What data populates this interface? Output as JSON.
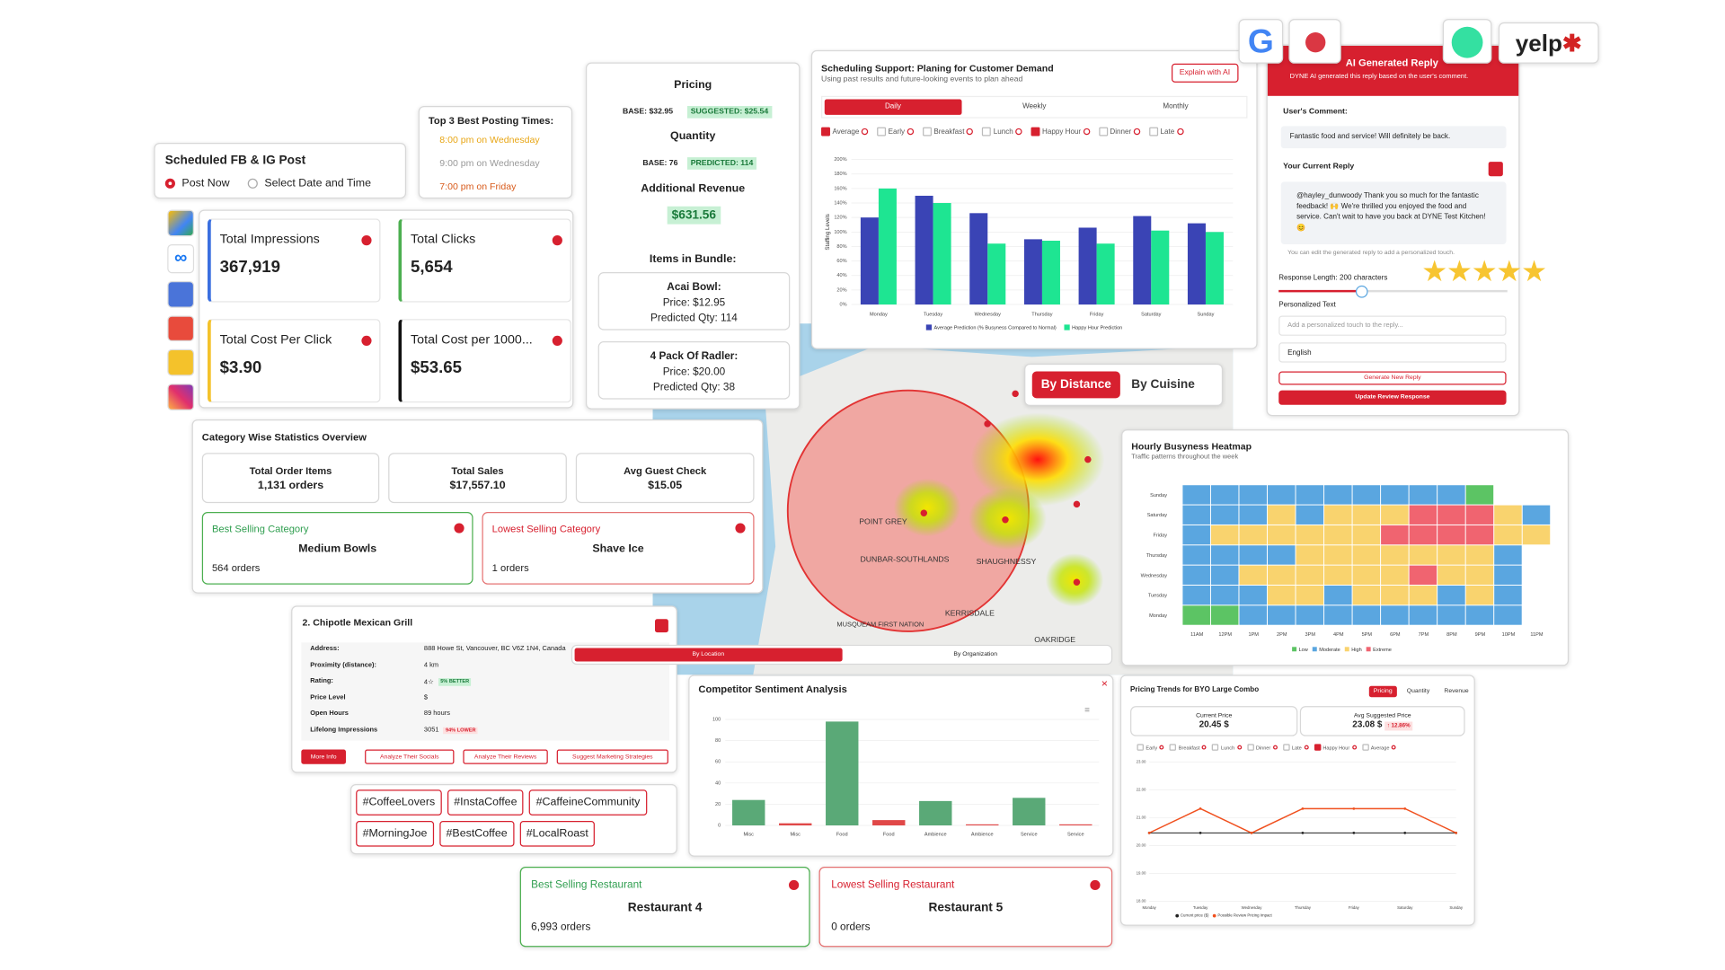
{
  "scheduled_post": {
    "title": "Scheduled FB & IG Post",
    "options": [
      "Post Now",
      "Select Date and Time"
    ]
  },
  "best_times": {
    "title": "Top 3 Best Posting Times:",
    "times": [
      "8:00 pm on Wednesday",
      "9:00 pm on Wednesday",
      "7:00 pm on Friday"
    ]
  },
  "metrics": [
    {
      "label": "Total Impressions",
      "value": "367,919"
    },
    {
      "label": "Total Clicks",
      "value": "5,654"
    },
    {
      "label": "Total Cost Per Click",
      "value": "$3.90"
    },
    {
      "label": "Total Cost per 1000...",
      "value": "$53.65"
    }
  ],
  "pricing": {
    "title": "Pricing",
    "base": "BASE: $32.95",
    "suggested": "SUGGESTED: $25.54",
    "quantity_title": "Quantity",
    "qty_base": "BASE: 76",
    "qty_predicted": "PREDICTED: 114",
    "revenue_title": "Additional Revenue",
    "revenue": "$631.56",
    "bundle_title": "Items in Bundle:",
    "items": [
      {
        "name": "Acai Bowl:",
        "price": "Price: $12.95",
        "qty": "Predicted Qty: 114"
      },
      {
        "name": "4 Pack Of Radler:",
        "price": "Price: $20.00",
        "qty": "Predicted Qty: 38"
      }
    ]
  },
  "scheduling": {
    "type": "bar",
    "title": "Scheduling Support: Planing for Customer Demand",
    "subtitle": "Using past results and future-looking events to plan ahead",
    "button": "Explain with AI",
    "tabs": [
      "Daily",
      "Weekly",
      "Monthly"
    ],
    "filters": [
      {
        "name": "Average",
        "checked": true
      },
      {
        "name": "Early",
        "checked": false
      },
      {
        "name": "Breakfast",
        "checked": false
      },
      {
        "name": "Lunch",
        "checked": false
      },
      {
        "name": "Happy Hour",
        "checked": true
      },
      {
        "name": "Dinner",
        "checked": false
      },
      {
        "name": "Late",
        "checked": false
      }
    ],
    "y_label": "Staffing Levels",
    "categories": [
      "Monday",
      "Tuesday",
      "Wednesday",
      "Thursday",
      "Friday",
      "Saturday",
      "Sunday"
    ],
    "series": [
      {
        "name": "Average Prediction (% Busyness Compared to Normal)",
        "color": "#3a44b5",
        "values": [
          120,
          150,
          126,
          90,
          106,
          122,
          112
        ]
      },
      {
        "name": "Happy Hour Prediction",
        "color": "#1ee592",
        "values": [
          160,
          140,
          84,
          88,
          84,
          102,
          100
        ]
      }
    ],
    "ylim": [
      0,
      200
    ],
    "yticks": [
      {
        "value": 0,
        "label": "0%"
      },
      {
        "value": 20,
        "label": "20%"
      },
      {
        "value": 40,
        "label": "40%"
      },
      {
        "value": 60,
        "label": "60%"
      },
      {
        "value": 80,
        "label": "80%"
      },
      {
        "value": 100,
        "label": "100%"
      },
      {
        "value": 120,
        "label": "120%"
      },
      {
        "value": 140,
        "label": "140%"
      },
      {
        "value": 160,
        "label": "160%"
      },
      {
        "value": 180,
        "label": "180%"
      },
      {
        "value": 200,
        "label": "200%"
      }
    ],
    "grid": true
  },
  "map": {
    "tabs": [
      "By Distance",
      "By Cuisine"
    ],
    "labels": [
      "DUNBAR-SOUTHLANDS",
      "SHAUGHNESSY",
      "KERRISDALE",
      "MUSQUEAM FIRST NATION",
      "OAKRIDGE",
      "POINT GREY"
    ]
  },
  "logos": {
    "yelp": "yelp"
  },
  "ai_reply": {
    "title": "AI Generated Reply",
    "subtitle": "DYNE AI generated this reply based on the user's comment.",
    "comment_label": "User's Comment:",
    "comment": "Fantastic food and service! Will definitely be back.",
    "reply_label": "Your Current Reply",
    "reply": "@hayley_dunwoody Thank you so much for the fantastic feedback! 🙌 We're thrilled you enjoyed the food and service. Can't wait to have you back at DYNE Test Kitchen! 😊",
    "hint": "You can edit the generated reply to add a personalized touch.",
    "length": "Response Length: 200 characters",
    "personal_label": "Personalized Text",
    "placeholder": "Add a personalized touch to the reply...",
    "language": "English",
    "generate": "Generate New Reply",
    "update": "Update Review Response"
  },
  "heatmap": {
    "type": "heatmap",
    "title": "Hourly Busyness Heatmap",
    "subtitle": "Traffic patterns throughout the week",
    "rows": [
      "Sunday",
      "Saturday",
      "Friday",
      "Thursday",
      "Wednesday",
      "Tuesday",
      "Monday"
    ],
    "columns": [
      "11AM",
      "12PM",
      "1PM",
      "2PM",
      "3PM",
      "4PM",
      "5PM",
      "6PM",
      "7PM",
      "8PM",
      "9PM",
      "10PM",
      "11PM"
    ],
    "values": [
      [
        1,
        1,
        1,
        1,
        1,
        1,
        1,
        1,
        1,
        1,
        0,
        null,
        null
      ],
      [
        1,
        1,
        1,
        2,
        1,
        2,
        2,
        2,
        3,
        3,
        3,
        2,
        1
      ],
      [
        1,
        2,
        2,
        2,
        2,
        2,
        2,
        3,
        3,
        3,
        3,
        2,
        2
      ],
      [
        1,
        1,
        1,
        1,
        2,
        2,
        2,
        2,
        2,
        2,
        2,
        1,
        null
      ],
      [
        1,
        1,
        2,
        2,
        2,
        2,
        2,
        2,
        3,
        2,
        2,
        1,
        null
      ],
      [
        1,
        1,
        1,
        2,
        2,
        1,
        2,
        2,
        2,
        1,
        2,
        1,
        null
      ],
      [
        0,
        0,
        1,
        1,
        1,
        1,
        1,
        1,
        1,
        1,
        1,
        1,
        null
      ]
    ],
    "legend": [
      {
        "name": "Low",
        "color": "#5cc464"
      },
      {
        "name": "Moderate",
        "color": "#5aa6e0"
      },
      {
        "name": "High",
        "color": "#f9d36e"
      },
      {
        "name": "Extreme",
        "color": "#f06470"
      }
    ]
  },
  "category_stats": {
    "title": "Category Wise Statistics Overview",
    "cards": [
      {
        "label": "Total Order Items",
        "value": "1,131 orders"
      },
      {
        "label": "Total Sales",
        "value": "$17,557.10"
      },
      {
        "label": "Avg Guest Check",
        "value": "$15.05"
      }
    ],
    "best": {
      "label": "Best Selling Category",
      "name": "Medium Bowls",
      "orders": "564 orders"
    },
    "lowest": {
      "label": "Lowest Selling Category",
      "name": "Shave Ice",
      "orders": "1 orders"
    }
  },
  "competitor_card": {
    "title": "2. Chipotle Mexican Grill",
    "rows": [
      {
        "label": "Address:",
        "value": "888 Howe St, Vancouver, BC V6Z 1N4, Canada"
      },
      {
        "label": "Proximity (distance):",
        "value": "4 km"
      },
      {
        "label": "Rating:",
        "value": "4☆",
        "badge": "5% BETTER"
      },
      {
        "label": "Price Level",
        "value": "$"
      },
      {
        "label": "Open Hours",
        "value": "89 hours"
      },
      {
        "label": "Lifelong Impressions",
        "value": "3051",
        "badge": "94% LOWER"
      }
    ],
    "buttons": [
      "More Info",
      "Analyze Their Socials",
      "Analyze Their Reviews",
      "Suggest Marketing Strategies"
    ],
    "tabs": [
      "By Location",
      "By Organization"
    ]
  },
  "hashtags": [
    "#CoffeeLovers",
    "#InstaCoffee",
    "#CaffeineCommunity",
    "#MorningJoe",
    "#BestCoffee",
    "#LocalRoast"
  ],
  "sentiment": {
    "type": "bar",
    "title": "Competitor Sentiment Analysis",
    "categories": [
      "Misc",
      "Misc",
      "Food",
      "Food",
      "Ambience",
      "Ambience",
      "Service",
      "Service"
    ],
    "values": [
      24,
      2,
      98,
      5,
      23,
      1,
      26,
      1
    ],
    "colors": [
      "#5aa977",
      "#e04848",
      "#5aa977",
      "#e04848",
      "#5aa977",
      "#e04848",
      "#5aa977",
      "#e04848"
    ],
    "ylim": [
      0,
      100
    ],
    "yticks": [
      0,
      20,
      40,
      60,
      80,
      100
    ],
    "grid": true
  },
  "pricing_trends": {
    "type": "line",
    "title": "Pricing Trends for BYO Large Combo",
    "tabs": [
      "Pricing",
      "Quantity",
      "Revenue"
    ],
    "current_label": "Current Price",
    "current": "20.45 $",
    "avg_label": "Avg Suggested Price",
    "avg": "23.08 $",
    "change": "12.86%",
    "filters": [
      {
        "name": "Early",
        "checked": false
      },
      {
        "name": "Breakfast",
        "checked": false
      },
      {
        "name": "Lunch",
        "checked": false
      },
      {
        "name": "Dinner",
        "checked": false
      },
      {
        "name": "Late",
        "checked": false
      },
      {
        "name": "Happy Hour",
        "checked": true
      },
      {
        "name": "Average",
        "checked": false
      }
    ],
    "categories": [
      "Monday",
      "Tuesday",
      "Wednesday",
      "Thursday",
      "Friday",
      "Saturday",
      "Sunday"
    ],
    "series": [
      {
        "name": "Current price ($)",
        "color": "#222222",
        "values": [
          20.45,
          20.45,
          20.45,
          20.45,
          20.45,
          20.45,
          20.45
        ]
      },
      {
        "name": "Possible Review Pricing Impact",
        "color": "#f0501e",
        "values": [
          20.45,
          21.32,
          20.45,
          21.32,
          21.32,
          21.32,
          20.45
        ]
      }
    ],
    "ylim": [
      18,
      23
    ],
    "yticks": [
      {
        "value": 18,
        "label": "18.00"
      },
      {
        "value": 19,
        "label": "19.00"
      },
      {
        "value": 20,
        "label": "20.00"
      },
      {
        "value": 21,
        "label": "21.00"
      },
      {
        "value": 22,
        "label": "22.00"
      },
      {
        "value": 23,
        "label": "23.00"
      }
    ],
    "grid": true
  },
  "restaurants": {
    "best": {
      "label": "Best Selling Restaurant",
      "name": "Restaurant 4",
      "orders": "6,993 orders"
    },
    "lowest": {
      "label": "Lowest Selling Restaurant",
      "name": "Restaurant 5",
      "orders": "0 orders"
    }
  }
}
